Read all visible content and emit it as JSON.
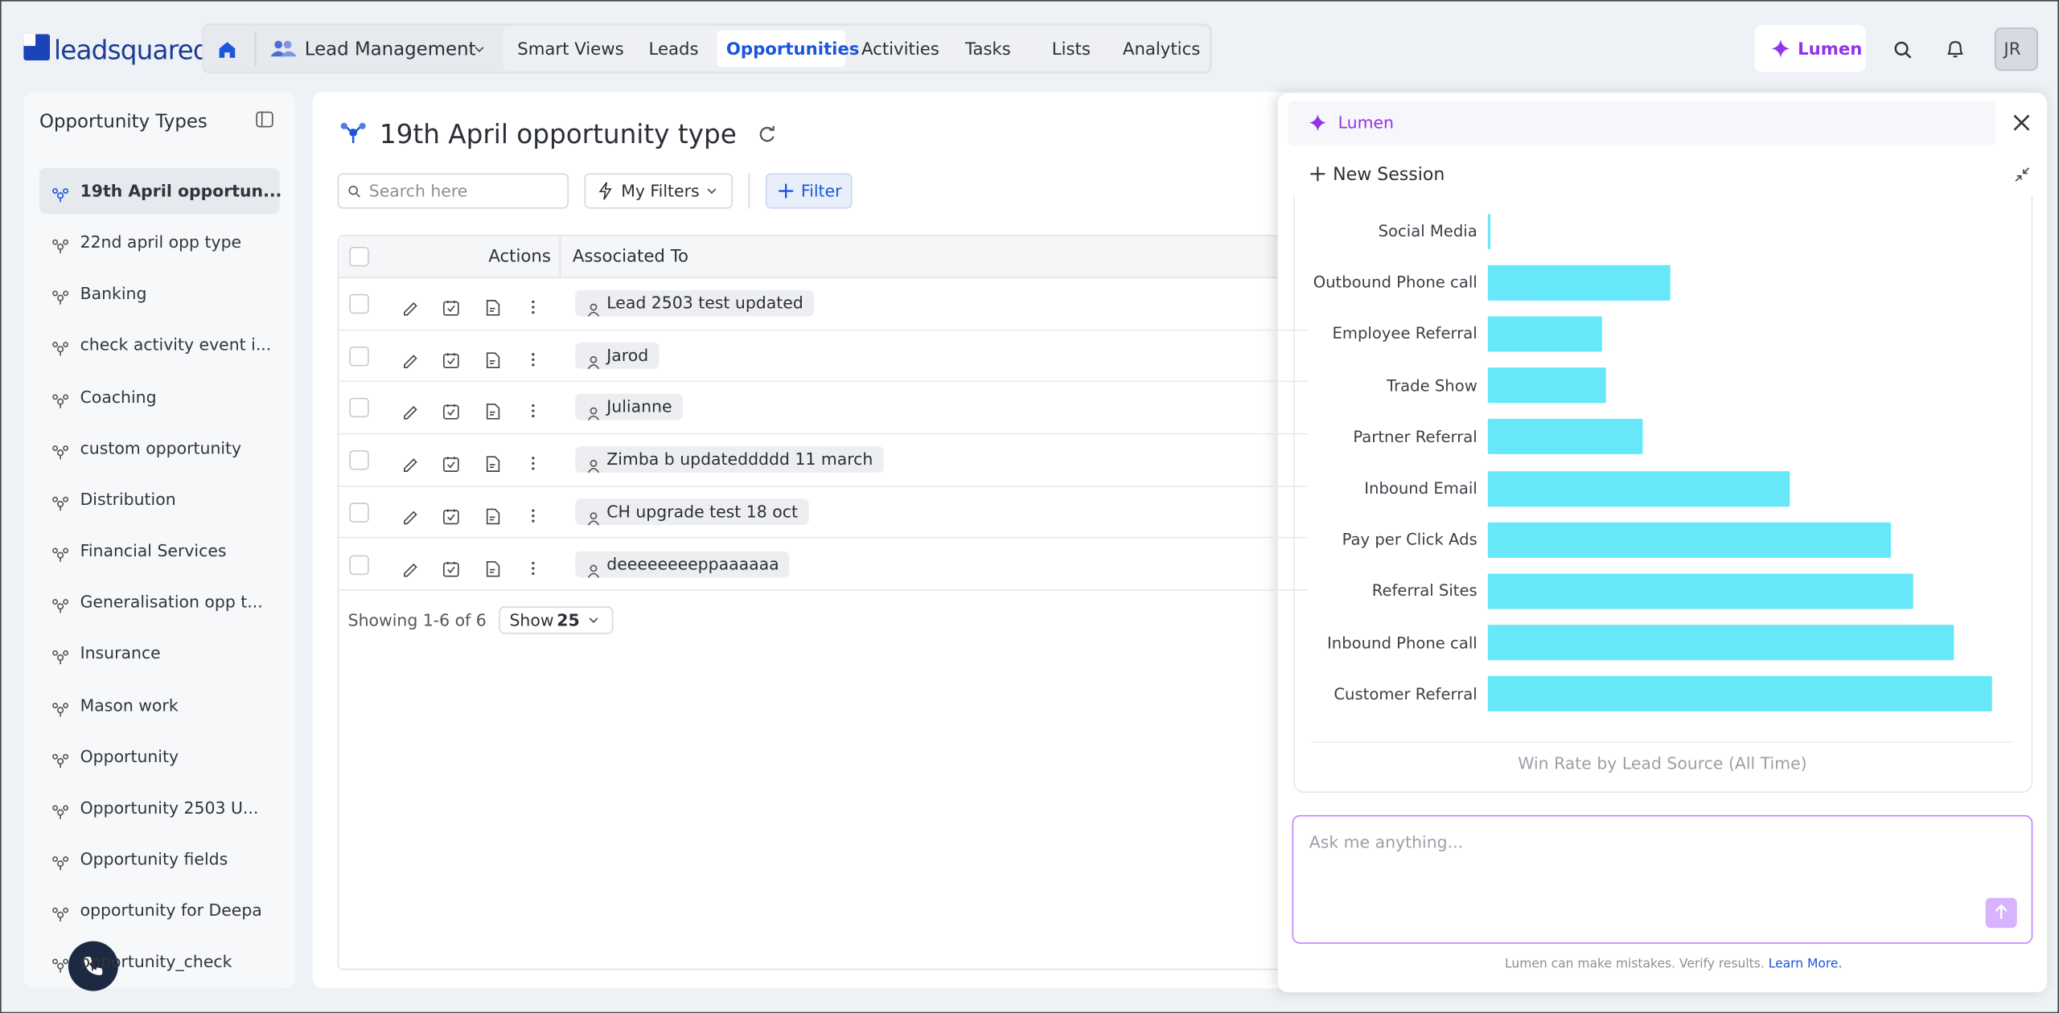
{
  "header": {
    "logo": "leadsquared",
    "module": "Lead Management",
    "nav": [
      "Smart Views",
      "Leads",
      "Opportunities",
      "Activities",
      "Tasks",
      "Lists",
      "Analytics"
    ],
    "lumen_button": "Lumen",
    "avatar": "JR"
  },
  "sidebar": {
    "title": "Opportunity Types",
    "items": [
      "19th April opportun...",
      "22nd april opp type",
      "Banking",
      "check activity event i...",
      "Coaching",
      "custom opportunity",
      "Distribution",
      "Financial Services",
      "Generalisation opp t...",
      "Insurance",
      "Mason work",
      "Opportunity",
      "Opportunity 2503 U...",
      "Opportunity fields",
      "opportunity for Deepa",
      "opportunity_check"
    ]
  },
  "main": {
    "title": "19th April opportunity type",
    "search_placeholder": "Search here",
    "my_filters": "My Filters",
    "filter": "Filter",
    "table": {
      "columns": [
        "Actions",
        "Associated To"
      ],
      "rows": [
        "Lead 2503 test updated",
        "Jarod",
        "Julianne",
        "Zimba b updateddddd 11 march",
        "CH upgrade test 18 oct",
        "deeeeeeeeppaaaaaa"
      ]
    },
    "footer": {
      "showing": "Showing 1-6 of 6",
      "show": "Show",
      "page_size": 25
    }
  },
  "lumen": {
    "title": "Lumen",
    "new_session": "New Session",
    "chart": {
      "type": "bar",
      "orientation": "horizontal",
      "caption": "Win Rate by Lead Source (All Time)",
      "categories": [
        "Social Media",
        "Outbound Phone call",
        "Employee Referral",
        "Trade Show",
        "Partner Referral",
        "Inbound Email",
        "Pay per Click Ads",
        "Referral Sites",
        "Inbound Phone call",
        "Customer Referral"
      ],
      "values": [
        0.2,
        13.9,
        8.7,
        9.0,
        11.8,
        23.0,
        30.7,
        32.4,
        35.5,
        38.4
      ],
      "color": "#67e8f9",
      "xlim": [
        0,
        40
      ]
    },
    "input_placeholder": "Ask me anything...",
    "disclaimer": "Lumen can make mistakes. Verify results.",
    "learn_more": "Learn More."
  }
}
